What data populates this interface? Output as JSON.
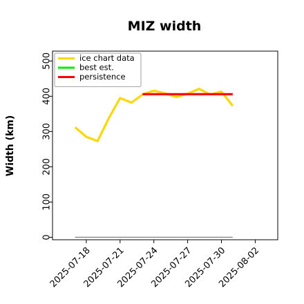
{
  "chart_data": {
    "type": "line",
    "title": "MIZ width",
    "xlabel": "",
    "ylabel": "Width (km)",
    "x_range": [
      "2025-07-15",
      "2025-08-04"
    ],
    "ylim": [
      -7,
      528
    ],
    "grid": false,
    "legend_placement": "top-left",
    "y_ticks": [
      0,
      100,
      200,
      300,
      400,
      500
    ],
    "x_ticks": [
      "2025-07-18",
      "2025-07-21",
      "2025-07-24",
      "2025-07-27",
      "2025-07-30",
      "2025-08-02"
    ],
    "series": [
      {
        "name": "ice chart data",
        "color": "#ffd700",
        "x": [
          "2025-07-17",
          "2025-07-18",
          "2025-07-19",
          "2025-07-20",
          "2025-07-21",
          "2025-07-22",
          "2025-07-23",
          "2025-07-24",
          "2025-07-25",
          "2025-07-26",
          "2025-07-27",
          "2025-07-28",
          "2025-07-29",
          "2025-07-30",
          "2025-07-31"
        ],
        "values": [
          312,
          285,
          273,
          338,
          395,
          382,
          405,
          416,
          408,
          398,
          407,
          421,
          405,
          413,
          373
        ]
      },
      {
        "name": "best est.",
        "color": "#00ee00",
        "x": [],
        "values": []
      },
      {
        "name": "persistence",
        "color": "#ff0000",
        "x": [
          "2025-07-23",
          "2025-07-31"
        ],
        "values": [
          406,
          406
        ]
      },
      {
        "color": "#808080",
        "x": [
          "2025-07-17",
          "2025-07-31"
        ],
        "values": [
          0,
          0
        ]
      }
    ]
  }
}
